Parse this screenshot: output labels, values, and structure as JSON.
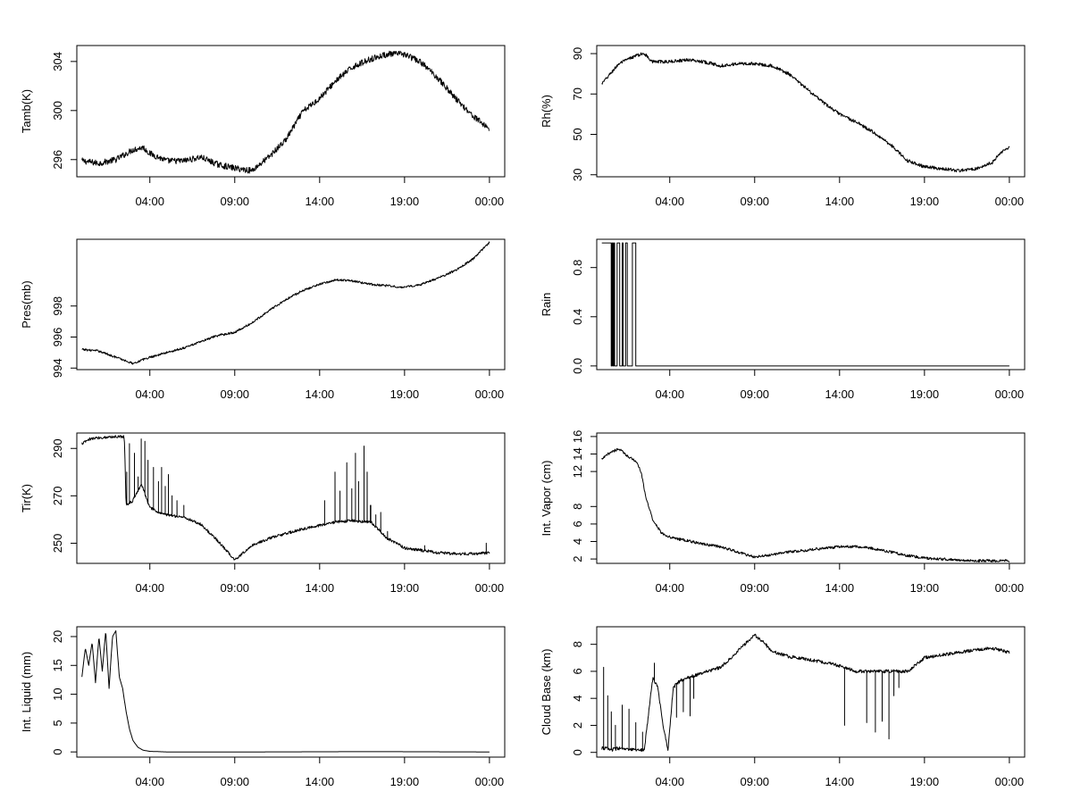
{
  "chart_data": [
    {
      "id": "tamb",
      "type": "line",
      "ylabel": "Tamb(K)",
      "x_ticks": [
        "04:00",
        "09:00",
        "14:00",
        "19:00",
        "00:00"
      ],
      "x_tick_hours": [
        4,
        9,
        14,
        19,
        24
      ],
      "xlim_hours": [
        -0.3,
        24.9
      ],
      "ylim": [
        294.6,
        305.3
      ],
      "y_ticks": [
        296,
        300,
        304
      ],
      "x_hours": [
        0,
        1,
        2,
        3,
        3.6,
        4,
        5,
        6,
        7,
        8,
        9,
        10,
        11,
        12,
        13,
        14,
        15,
        16,
        17,
        18,
        19,
        20,
        21,
        22,
        23,
        24
      ],
      "values": [
        295.9,
        295.7,
        296.0,
        296.8,
        297.0,
        296.5,
        295.9,
        295.9,
        296.2,
        295.6,
        295.3,
        295.1,
        296.2,
        297.6,
        299.9,
        301.0,
        302.5,
        303.6,
        304.2,
        304.6,
        304.6,
        303.9,
        302.6,
        301.0,
        299.6,
        298.5
      ],
      "noise": 0.25
    },
    {
      "id": "rh",
      "type": "line",
      "ylabel": "Rh(%)",
      "x_ticks": [
        "04:00",
        "09:00",
        "14:00",
        "19:00",
        "00:00"
      ],
      "x_tick_hours": [
        4,
        9,
        14,
        19,
        24
      ],
      "xlim_hours": [
        -0.3,
        24.9
      ],
      "ylim": [
        29,
        94
      ],
      "y_ticks": [
        30,
        50,
        70,
        90
      ],
      "x_hours": [
        0,
        1,
        2,
        2.5,
        3,
        4,
        5,
        6,
        7,
        8,
        9,
        10,
        11,
        12,
        13,
        14,
        15,
        16,
        17,
        18,
        19,
        20,
        21,
        22,
        23,
        23.5,
        24
      ],
      "values": [
        75,
        85,
        89,
        90,
        86,
        86,
        87,
        86,
        84,
        85,
        85,
        84,
        80,
        73,
        66,
        60,
        56,
        51,
        45,
        37,
        34,
        33,
        32,
        33,
        36,
        41,
        44
      ],
      "noise": 0.8
    },
    {
      "id": "pres",
      "type": "line",
      "ylabel": "Pres(mb)",
      "x_ticks": [
        "04:00",
        "09:00",
        "14:00",
        "19:00",
        "00:00"
      ],
      "x_tick_hours": [
        4,
        9,
        14,
        19,
        24
      ],
      "xlim_hours": [
        -0.3,
        24.9
      ],
      "ylim": [
        993.9,
        1002.3
      ],
      "y_ticks": [
        994,
        996,
        998
      ],
      "x_hours": [
        0,
        1,
        2,
        3,
        4,
        5,
        6,
        7,
        8,
        9,
        10,
        11,
        12,
        13,
        14,
        15,
        16,
        17,
        18,
        19,
        20,
        21,
        22,
        23,
        24
      ],
      "values": [
        995.2,
        995.1,
        994.7,
        994.3,
        994.7,
        995.0,
        995.3,
        995.7,
        996.1,
        996.3,
        996.9,
        997.7,
        998.4,
        999.0,
        999.4,
        999.7,
        999.6,
        999.4,
        999.3,
        999.2,
        999.4,
        999.8,
        1000.3,
        1001.0,
        1002.1
      ],
      "noise": 0.07
    },
    {
      "id": "rain",
      "type": "step",
      "ylabel": "Rain",
      "x_ticks": [
        "04:00",
        "09:00",
        "14:00",
        "19:00",
        "00:00"
      ],
      "x_tick_hours": [
        4,
        9,
        14,
        19,
        24
      ],
      "xlim_hours": [
        -0.3,
        24.9
      ],
      "ylim": [
        -0.03,
        1.03
      ],
      "y_ticks": [
        0.0,
        0.4,
        0.8
      ],
      "x_hours": [
        0,
        0.55,
        0.6,
        0.65,
        0.7,
        0.75,
        0.9,
        1.0,
        1.05,
        1.2,
        1.25,
        1.4,
        1.5,
        1.75,
        1.8,
        1.95,
        2.0,
        24
      ],
      "values": [
        1,
        0,
        1,
        0,
        1,
        0,
        1,
        1,
        0,
        1,
        0,
        1,
        0,
        0,
        1,
        1,
        0,
        0
      ]
    },
    {
      "id": "tir",
      "type": "line",
      "ylabel": "Tir(K)",
      "x_ticks": [
        "04:00",
        "09:00",
        "14:00",
        "19:00",
        "00:00"
      ],
      "x_tick_hours": [
        4,
        9,
        14,
        19,
        24
      ],
      "xlim_hours": [
        -0.3,
        24.9
      ],
      "ylim": [
        241.5,
        296.5
      ],
      "y_ticks": [
        250,
        270,
        290
      ],
      "x_hours": [
        0,
        0.5,
        1,
        2,
        2.5,
        2.6,
        3,
        3.5,
        4,
        4.5,
        5,
        6,
        7,
        8,
        9,
        10,
        11,
        12,
        13,
        14,
        15,
        16,
        17,
        18,
        19,
        20,
        21,
        22,
        23,
        24
      ],
      "values": [
        292,
        294,
        294.5,
        295,
        295,
        266,
        268,
        275,
        265,
        263,
        262,
        261,
        258,
        251,
        243,
        249,
        252,
        254,
        256,
        257.5,
        259,
        259.5,
        259,
        252,
        248,
        247,
        246,
        245.5,
        245.5,
        246
      ],
      "noise": 0.6,
      "spikes": [
        {
          "hour": 2.65,
          "value": 280
        },
        {
          "hour": 2.8,
          "value": 292
        },
        {
          "hour": 3.1,
          "value": 288
        },
        {
          "hour": 3.3,
          "value": 278
        },
        {
          "hour": 3.5,
          "value": 294
        },
        {
          "hour": 3.7,
          "value": 293
        },
        {
          "hour": 3.9,
          "value": 285
        },
        {
          "hour": 4.2,
          "value": 282
        },
        {
          "hour": 4.5,
          "value": 276
        },
        {
          "hour": 4.7,
          "value": 282
        },
        {
          "hour": 4.9,
          "value": 274
        },
        {
          "hour": 5.1,
          "value": 279
        },
        {
          "hour": 5.3,
          "value": 270
        },
        {
          "hour": 5.6,
          "value": 268
        },
        {
          "hour": 6.0,
          "value": 266
        },
        {
          "hour": 14.3,
          "value": 268
        },
        {
          "hour": 14.6,
          "value": 287
        },
        {
          "hour": 14.9,
          "value": 280
        },
        {
          "hour": 15.2,
          "value": 272
        },
        {
          "hour": 15.6,
          "value": 284
        },
        {
          "hour": 15.9,
          "value": 273
        },
        {
          "hour": 16.1,
          "value": 288
        },
        {
          "hour": 16.3,
          "value": 276
        },
        {
          "hour": 16.6,
          "value": 291
        },
        {
          "hour": 16.8,
          "value": 280
        },
        {
          "hour": 17.0,
          "value": 266
        },
        {
          "hour": 17.3,
          "value": 262
        },
        {
          "hour": 17.6,
          "value": 263
        },
        {
          "hour": 18.0,
          "value": 255
        },
        {
          "hour": 20.2,
          "value": 249
        },
        {
          "hour": 23.8,
          "value": 250
        }
      ]
    },
    {
      "id": "vapor",
      "type": "line",
      "ylabel": "Int. Vapor (cm)",
      "x_ticks": [
        "04:00",
        "09:00",
        "14:00",
        "19:00",
        "00:00"
      ],
      "x_tick_hours": [
        4,
        9,
        14,
        19,
        24
      ],
      "xlim_hours": [
        -0.3,
        24.9
      ],
      "ylim": [
        1.5,
        16.4
      ],
      "y_ticks": [
        2,
        4,
        6,
        8,
        12,
        14,
        16
      ],
      "y_tick_labels": [
        "2",
        "4",
        "6",
        "8",
        "12",
        "14",
        "16"
      ],
      "x_hours": [
        0,
        0.5,
        1,
        1.5,
        2,
        2.3,
        2.6,
        3,
        3.5,
        4,
        5,
        6,
        7,
        8,
        9,
        10,
        11,
        12,
        13,
        14,
        15,
        16,
        17,
        18,
        19,
        20,
        21,
        22,
        23,
        24
      ],
      "values": [
        13.4,
        14.2,
        14.6,
        13.8,
        13.2,
        12.0,
        9.0,
        6.5,
        5.0,
        4.5,
        4.1,
        3.7,
        3.4,
        2.8,
        2.2,
        2.5,
        2.8,
        3.0,
        3.2,
        3.4,
        3.4,
        3.2,
        2.8,
        2.4,
        2.1,
        2.0,
        1.9,
        1.8,
        1.8,
        1.8
      ],
      "noise": 0.15
    },
    {
      "id": "liquid",
      "type": "line",
      "ylabel": "Int. Liquid (mm)",
      "x_ticks": [
        "04:00",
        "09:00",
        "14:00",
        "19:00",
        "00:00"
      ],
      "x_tick_hours": [
        4,
        9,
        14,
        19,
        24
      ],
      "xlim_hours": [
        -0.3,
        24.9
      ],
      "ylim": [
        -0.9,
        21.7
      ],
      "y_ticks": [
        0,
        5,
        10,
        15,
        20
      ],
      "x_hours": [
        0,
        0.2,
        0.4,
        0.6,
        0.8,
        1.0,
        1.2,
        1.4,
        1.6,
        1.8,
        2.0,
        2.2,
        2.4,
        2.6,
        2.8,
        3.0,
        3.3,
        3.6,
        4.0,
        5,
        10,
        17,
        24
      ],
      "values": [
        13,
        18,
        15,
        19,
        12,
        20,
        14,
        21,
        11,
        20,
        21,
        13,
        11,
        7,
        4,
        2,
        0.8,
        0.3,
        0.1,
        0,
        0,
        0.05,
        0
      ],
      "noise": 0
    },
    {
      "id": "cloud",
      "type": "line",
      "ylabel": "Cloud Base (km)",
      "x_ticks": [
        "04:00",
        "09:00",
        "14:00",
        "19:00",
        "00:00"
      ],
      "x_tick_hours": [
        4,
        9,
        14,
        19,
        24
      ],
      "xlim_hours": [
        -0.3,
        24.9
      ],
      "ylim": [
        -0.35,
        9.3
      ],
      "y_ticks": [
        0,
        2,
        4,
        6,
        8
      ],
      "x_hours": [
        0,
        0.3,
        0.6,
        1.0,
        1.5,
        2.0,
        2.5,
        3.0,
        3.3,
        3.6,
        3.9,
        4.2,
        4.6,
        5.0,
        6.0,
        7.0,
        8.0,
        9.0,
        9.5,
        10,
        11,
        12,
        13,
        14,
        15,
        16,
        17,
        18,
        19,
        20,
        21,
        22,
        23,
        24
      ],
      "values": [
        0.3,
        0.3,
        0.2,
        0.3,
        0.2,
        0.2,
        0.2,
        5.5,
        4.8,
        2.0,
        0.2,
        4.8,
        5.3,
        5.5,
        5.9,
        6.3,
        7.5,
        8.7,
        8.2,
        7.5,
        7.1,
        6.9,
        6.7,
        6.4,
        6.0,
        6.0,
        6.0,
        6.0,
        7.0,
        7.2,
        7.4,
        7.6,
        7.7,
        7.4
      ],
      "noise": 0.12,
      "spikes": [
        {
          "hour": 0.1,
          "value": 6.3
        },
        {
          "hour": 0.2,
          "value": 4.5
        },
        {
          "hour": 0.35,
          "value": 4.2
        },
        {
          "hour": 0.55,
          "value": 3.0
        },
        {
          "hour": 0.8,
          "value": 2.0
        },
        {
          "hour": 1.2,
          "value": 3.5
        },
        {
          "hour": 1.6,
          "value": 3.2
        },
        {
          "hour": 2.0,
          "value": 2.2
        },
        {
          "hour": 2.4,
          "value": 1.5
        },
        {
          "hour": 3.1,
          "value": 6.6
        },
        {
          "hour": 4.4,
          "value": 2.6
        },
        {
          "hour": 4.8,
          "value": 3.0
        },
        {
          "hour": 5.2,
          "value": 2.7
        },
        {
          "hour": 5.4,
          "value": 4.0
        },
        {
          "hour": 14.3,
          "value": 2.0
        },
        {
          "hour": 14.6,
          "value": 1.7
        },
        {
          "hour": 15.0,
          "value": 4.0
        },
        {
          "hour": 15.6,
          "value": 2.2
        },
        {
          "hour": 16.1,
          "value": 1.5
        },
        {
          "hour": 16.5,
          "value": 2.3
        },
        {
          "hour": 16.9,
          "value": 1.0
        },
        {
          "hour": 17.2,
          "value": 4.2
        },
        {
          "hour": 17.5,
          "value": 4.8
        }
      ]
    }
  ]
}
